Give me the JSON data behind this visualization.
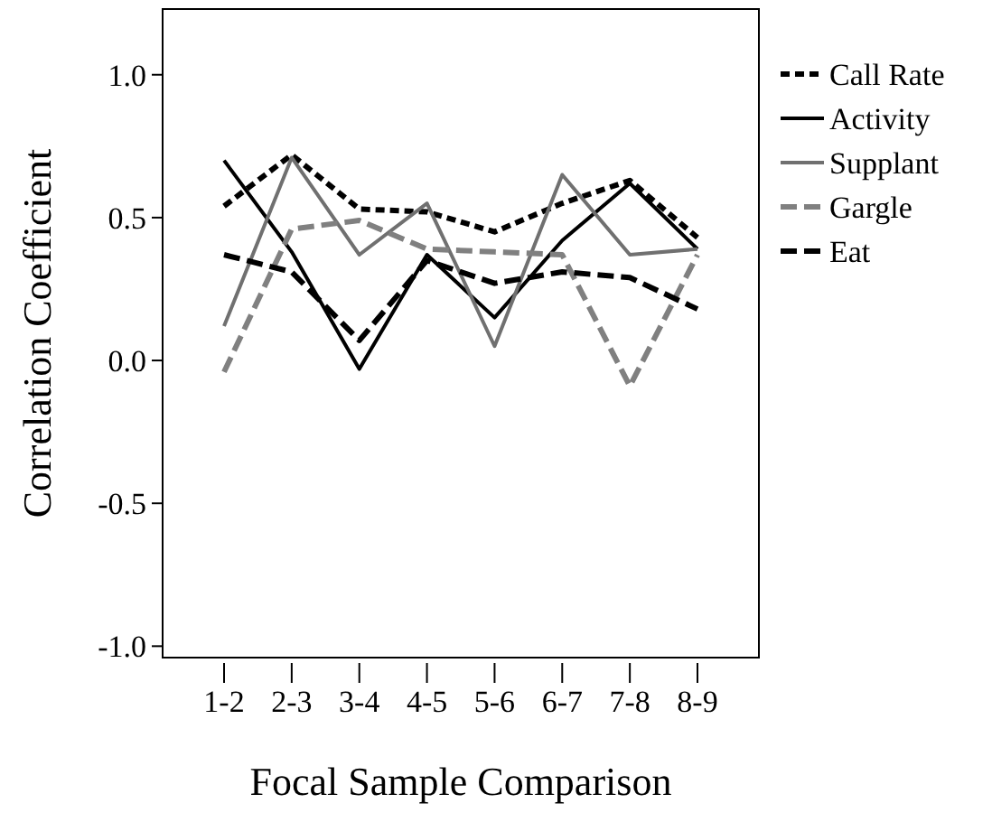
{
  "chart_data": {
    "type": "line",
    "xlabel": "Focal Sample Comparison",
    "ylabel": "Correlation Coefficient",
    "categories": [
      "1-2",
      "2-3",
      "3-4",
      "4-5",
      "5-6",
      "6-7",
      "7-8",
      "8-9"
    ],
    "series": [
      {
        "name": "Call Rate",
        "color": "#000000",
        "line_style": "dotted",
        "values": [
          0.54,
          0.72,
          0.53,
          0.52,
          0.45,
          0.55,
          0.63,
          0.43
        ]
      },
      {
        "name": "Activity",
        "color": "#000000",
        "line_style": "solid",
        "values": [
          0.7,
          0.38,
          -0.03,
          0.37,
          0.15,
          0.42,
          0.62,
          0.39
        ]
      },
      {
        "name": "Supplant",
        "color": "#707070",
        "line_style": "solid",
        "values": [
          0.12,
          0.71,
          0.37,
          0.55,
          0.05,
          0.65,
          0.37,
          0.39
        ]
      },
      {
        "name": "Gargle",
        "color": "#808080",
        "line_style": "dashed",
        "values": [
          -0.04,
          0.46,
          0.49,
          0.39,
          0.38,
          0.37,
          -0.09,
          0.37
        ]
      },
      {
        "name": "Eat",
        "color": "#000000",
        "line_style": "dashed",
        "values": [
          0.37,
          0.31,
          0.07,
          0.35,
          0.27,
          0.31,
          0.29,
          0.18
        ]
      }
    ],
    "ylim": [
      -1.04,
      1.23
    ],
    "yticks": [
      {
        "value": -1,
        "label": "-1.0"
      },
      {
        "value": -0.5,
        "label": "-0.5"
      },
      {
        "value": 0,
        "label": "0.0"
      },
      {
        "value": 0.5,
        "label": "0.5"
      },
      {
        "value": 1,
        "label": "1.0"
      }
    ],
    "grid": false,
    "legend": "right",
    "marker": "none"
  }
}
